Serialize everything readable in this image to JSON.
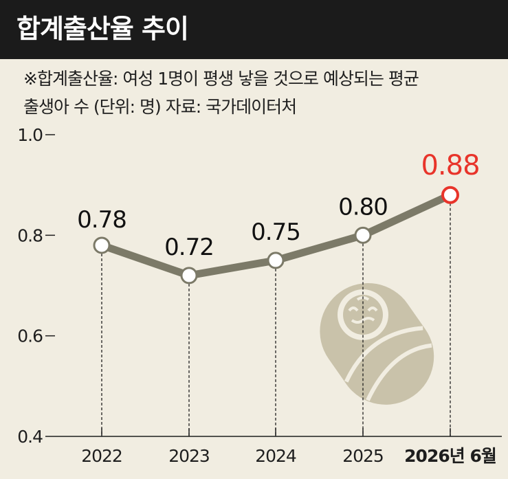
{
  "title": "합계출산율 추이",
  "note_line1": "※합계출산율: 여성 1명이 평생 낳을 것으로 예상되는 평균",
  "note_line2": "출생아 수  (단위: 명)  자료: 국가데이터처",
  "colors": {
    "header_bg": "#1b1b1b",
    "background": "#f1ede1",
    "line": "#7c7a68",
    "highlight": "#e8342a",
    "baby": "#c9c2aa"
  },
  "chart_data": {
    "type": "line",
    "categories": [
      "2022",
      "2023",
      "2024",
      "2025",
      "2026년 6월"
    ],
    "values": [
      0.78,
      0.72,
      0.75,
      0.8,
      0.88
    ],
    "data_labels": [
      "0.78",
      "0.72",
      "0.75",
      "0.80",
      "0.88"
    ],
    "yticks": [
      "0.4",
      "0.6",
      "0.8",
      "1.0"
    ],
    "ylim": [
      0.4,
      1.0
    ],
    "highlight_index": 4,
    "grid": false
  },
  "illustration": {
    "icon": "swaddled-baby-icon"
  }
}
